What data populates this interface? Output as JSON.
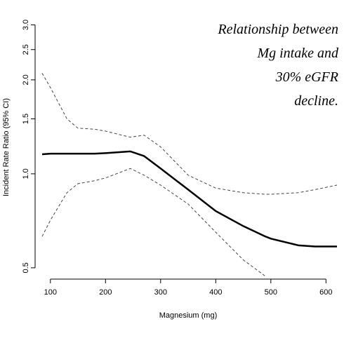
{
  "chart_data": {
    "type": "line",
    "xlabel": "Magnesium (mg)",
    "ylabel": "Incident Rate Ratio (95% CI)",
    "annotation": [
      "Relationship between",
      "Mg intake and",
      "30% eGFR",
      "decline."
    ],
    "x": [
      85,
      100,
      130,
      150,
      180,
      200,
      245,
      270,
      300,
      350,
      400,
      450,
      490,
      500,
      550,
      580,
      620
    ],
    "series": [
      {
        "color": "#000000",
        "style": "solid",
        "values": [
          1.155,
          1.16,
          1.16,
          1.16,
          1.16,
          1.165,
          1.18,
          1.14,
          1.04,
          0.89,
          0.76,
          0.68,
          0.63,
          0.62,
          0.59,
          0.585,
          0.585
        ]
      },
      {
        "color": "#444444",
        "style": "dashed",
        "values": [
          2.1,
          1.89,
          1.5,
          1.4,
          1.39,
          1.37,
          1.31,
          1.33,
          1.22,
          0.99,
          0.9,
          0.87,
          0.86,
          0.86,
          0.87,
          0.89,
          0.92
        ]
      },
      {
        "color": "#444444",
        "style": "dashed",
        "values": [
          0.63,
          0.71,
          0.87,
          0.93,
          0.95,
          0.97,
          1.04,
          0.99,
          0.92,
          0.8,
          0.65,
          0.53,
          0.47,
          null,
          null,
          null,
          null
        ]
      }
    ],
    "xlim": [
      85,
      620
    ],
    "xticks": [
      100,
      200,
      300,
      400,
      500,
      600
    ],
    "ylim": [
      0.46,
      3.25
    ],
    "ylog": true,
    "yticks": [
      0.5,
      {
        "value": 1,
        "label": "1.0"
      },
      1.5,
      {
        "value": 2,
        "label": "2.0"
      },
      2.5,
      {
        "value": 3,
        "label": "3.0"
      }
    ]
  }
}
